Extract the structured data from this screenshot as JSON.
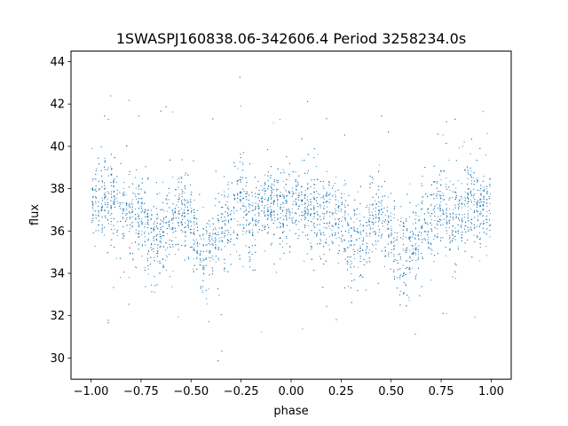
{
  "chart_data": {
    "type": "scatter",
    "title": "1SWASPJ160838.06-342606.4 Period 3258234.0s",
    "xlabel": "phase",
    "ylabel": "flux",
    "xlim": [
      -1.1,
      1.1
    ],
    "ylim": [
      29.0,
      44.5
    ],
    "xticks": [
      -1.0,
      -0.75,
      -0.5,
      -0.25,
      0.0,
      0.25,
      0.5,
      0.75,
      1.0
    ],
    "xtick_labels": [
      "−1.00",
      "−0.75",
      "−0.50",
      "−0.25",
      "0.00",
      "0.25",
      "0.50",
      "0.75",
      "1.00"
    ],
    "yticks": [
      30,
      32,
      34,
      36,
      38,
      40,
      42,
      44
    ],
    "ytick_labels": [
      "30",
      "32",
      "34",
      "36",
      "38",
      "40",
      "42",
      "44"
    ],
    "grid": false,
    "legend": "none",
    "point_color": "#1f77b4",
    "series": [
      {
        "description_x": [
          -1.0,
          -0.95,
          -0.9,
          -0.85,
          -0.8,
          -0.75,
          -0.7,
          -0.65,
          -0.6,
          -0.55,
          -0.5,
          -0.45,
          -0.4,
          -0.35,
          -0.3,
          -0.25,
          -0.2,
          -0.15,
          -0.1,
          -0.05,
          0.0,
          0.05,
          0.1,
          0.15,
          0.2,
          0.25,
          0.3,
          0.35,
          0.4,
          0.45,
          0.5,
          0.55,
          0.6,
          0.65,
          0.7,
          0.75,
          0.8,
          0.85,
          0.9,
          0.95,
          1.0
        ],
        "trend_y": [
          37.2,
          37.3,
          37.5,
          37.0,
          36.8,
          36.6,
          35.6,
          35.7,
          36.3,
          37.2,
          36.5,
          34.6,
          35.3,
          35.8,
          36.4,
          37.6,
          36.2,
          37.2,
          37.2,
          37.0,
          37.2,
          37.4,
          37.0,
          36.6,
          36.6,
          36.6,
          35.3,
          35.5,
          36.5,
          37.0,
          36.0,
          34.6,
          35.3,
          36.0,
          36.4,
          37.5,
          36.3,
          37.2,
          37.3,
          37.0,
          37.2
        ]
      }
    ]
  }
}
